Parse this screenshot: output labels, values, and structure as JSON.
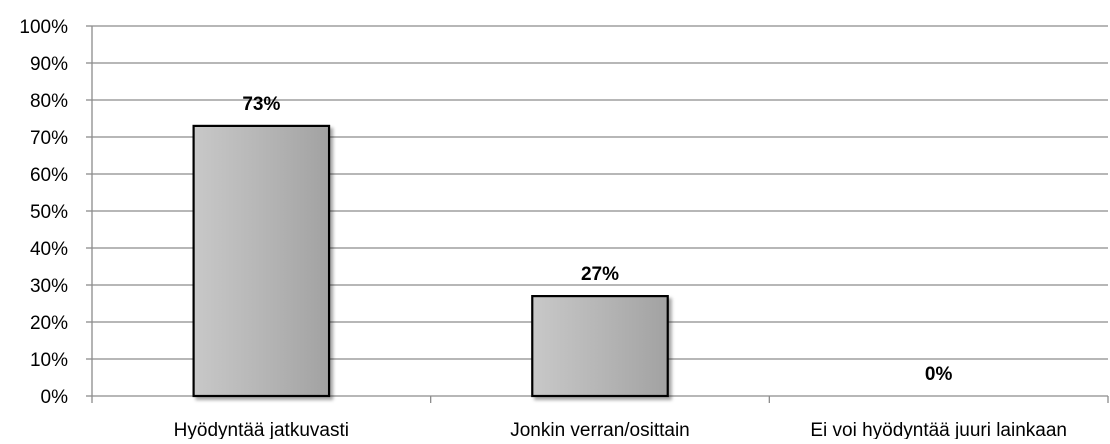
{
  "chart_data": {
    "type": "bar",
    "categories": [
      "Hyödyntää jatkuvasti",
      "Jonkin verran/osittain",
      "Ei voi hyödyntää juuri lainkaan"
    ],
    "values": [
      73,
      27,
      0
    ],
    "data_labels": [
      "73%",
      "27%",
      "0%"
    ],
    "ylim": [
      0,
      100
    ],
    "yticks": [
      0,
      10,
      20,
      30,
      40,
      50,
      60,
      70,
      80,
      90,
      100
    ],
    "ytick_labels": [
      "0%",
      "10%",
      "20%",
      "30%",
      "40%",
      "50%",
      "60%",
      "70%",
      "80%",
      "90%",
      "100%"
    ],
    "grid": true,
    "legend": "none",
    "bar_color": "#b4b4b4",
    "bar_edge_color": "#000000",
    "grid_color": "#8c8c8c"
  }
}
